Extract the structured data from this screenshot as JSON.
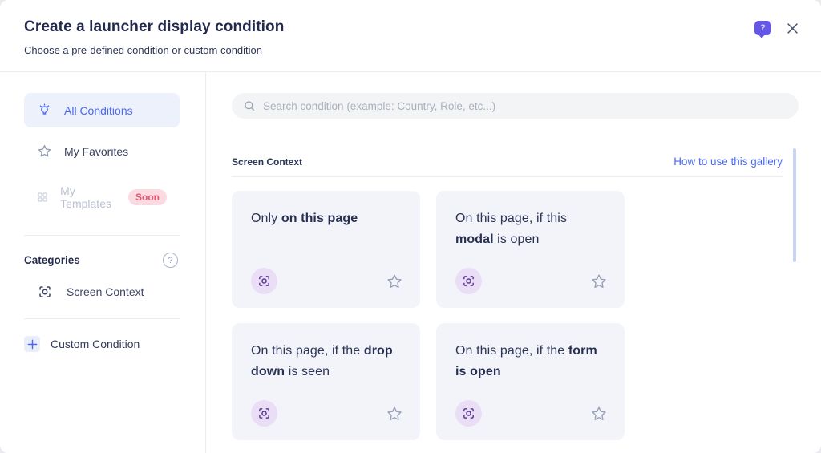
{
  "header": {
    "title": "Create a launcher display condition",
    "subtitle": "Choose a pre-defined condition or custom condition"
  },
  "sidebar": {
    "items": [
      {
        "label": "All Conditions",
        "icon": "lightbulb-icon",
        "selected": true
      },
      {
        "label": "My Favorites",
        "icon": "star-icon",
        "selected": false
      },
      {
        "label": "My Templates",
        "icon": "grid-icon",
        "selected": false,
        "badge": "Soon"
      }
    ],
    "categories": {
      "label": "Categories",
      "help": "?",
      "items": [
        {
          "label": "Screen Context",
          "icon": "screen-context-icon"
        }
      ]
    },
    "custom_condition": {
      "label": "Custom Condition",
      "icon": "plus-icon"
    }
  },
  "search": {
    "placeholder": "Search condition (example: Country, Role, etc...)",
    "value": ""
  },
  "section": {
    "title": "Screen Context",
    "link": "How to use this gallery"
  },
  "cards": [
    {
      "title_segments": [
        {
          "text": "Only ",
          "bold": false
        },
        {
          "text": "on this page",
          "bold": true
        }
      ],
      "category_icon": "screen-context-icon",
      "favorite_icon": "star-icon"
    },
    {
      "title_segments": [
        {
          "text": "On this page, if this ",
          "bold": false
        },
        {
          "text": "modal",
          "bold": true
        },
        {
          "text": " is open",
          "bold": false
        }
      ],
      "category_icon": "screen-context-icon",
      "favorite_icon": "star-icon"
    },
    {
      "title_segments": [
        {
          "text": "On this page, if the ",
          "bold": false
        },
        {
          "text": "drop down",
          "bold": true
        },
        {
          "text": " is seen",
          "bold": false
        }
      ],
      "category_icon": "screen-context-icon",
      "favorite_icon": "star-icon"
    },
    {
      "title_segments": [
        {
          "text": "On this page, if the ",
          "bold": false
        },
        {
          "text": "form is open",
          "bold": true
        }
      ],
      "category_icon": "screen-context-icon",
      "favorite_icon": "star-icon"
    }
  ],
  "colors": {
    "accent_blue": "#4a68ef",
    "link_blue": "#4a6af5",
    "selected_bg": "#edf1fc",
    "card_bg": "#f3f4f9",
    "badge_purple_bg": "#e9def6",
    "badge_purple_icon": "#5e3a91",
    "soon_bg": "#fbdae2",
    "soon_text": "#e4576e",
    "help_bubble_purple": "#6356e8",
    "title_navy": "#232a4e"
  }
}
